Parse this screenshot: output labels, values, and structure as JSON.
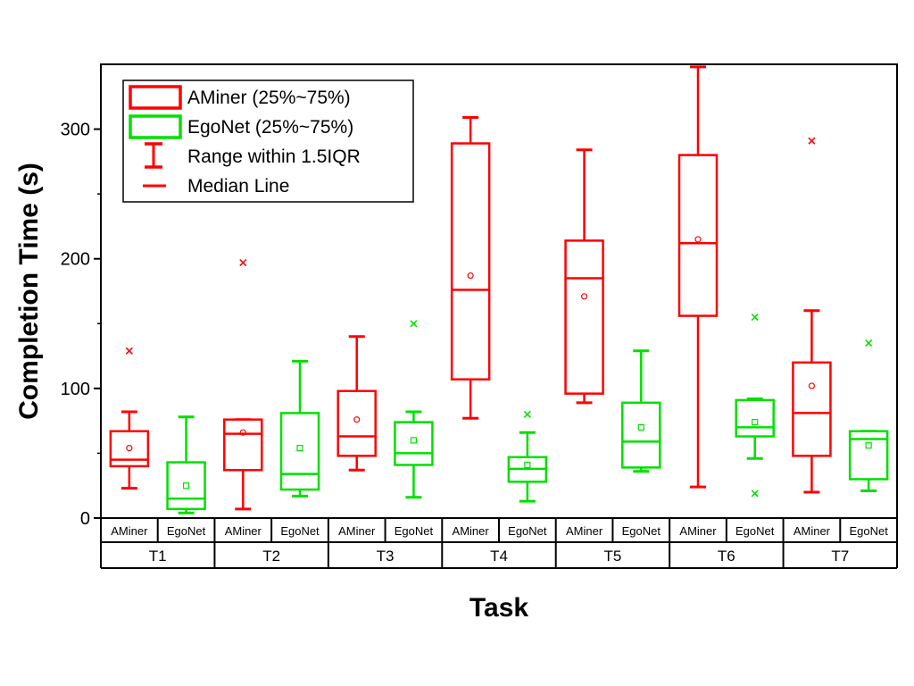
{
  "chart_data": {
    "type": "box",
    "xlabel": "Task",
    "ylabel": "Completion Time (s)",
    "ylim": [
      0,
      350
    ],
    "yticks": [
      0,
      100,
      200,
      300
    ],
    "groups": [
      "T1",
      "T2",
      "T3",
      "T4",
      "T5",
      "T6",
      "T7"
    ],
    "colors": {
      "AMiner": "#ff0000",
      "EgoNet": "#00e000"
    },
    "legend": {
      "position": "top-left",
      "entries": [
        {
          "label": "AMiner (25%~75%)",
          "kind": "box",
          "series": "AMiner"
        },
        {
          "label": "EgoNet (25%~75%)",
          "kind": "box",
          "series": "EgoNet"
        },
        {
          "label": "Range within 1.5IQR",
          "kind": "whisker",
          "series": "AMiner"
        },
        {
          "label": "Median Line",
          "kind": "median",
          "series": "AMiner"
        }
      ]
    },
    "series": [
      {
        "name": "AMiner",
        "boxes": [
          {
            "group": "T1",
            "whisker_low": 23,
            "q1": 40,
            "median": 45,
            "q3": 67,
            "whisker_high": 82,
            "mean": 54,
            "outliers": [
              129
            ]
          },
          {
            "group": "T2",
            "whisker_low": 7,
            "q1": 37,
            "median": 65,
            "q3": 76,
            "whisker_high": 76,
            "mean": 66,
            "outliers": [
              197
            ]
          },
          {
            "group": "T3",
            "whisker_low": 37,
            "q1": 48,
            "median": 63,
            "q3": 98,
            "whisker_high": 140,
            "mean": 76,
            "outliers": []
          },
          {
            "group": "T4",
            "whisker_low": 77,
            "q1": 107,
            "median": 176,
            "q3": 289,
            "whisker_high": 309,
            "mean": 187,
            "outliers": []
          },
          {
            "group": "T5",
            "whisker_low": 89,
            "q1": 96,
            "median": 185,
            "q3": 214,
            "whisker_high": 284,
            "mean": 171,
            "outliers": []
          },
          {
            "group": "T6",
            "whisker_low": 24,
            "q1": 156,
            "median": 212,
            "q3": 280,
            "whisker_high": 348,
            "mean": 215,
            "outliers": []
          },
          {
            "group": "T7",
            "whisker_low": 20,
            "q1": 48,
            "median": 81,
            "q3": 120,
            "whisker_high": 160,
            "mean": 102,
            "outliers": [
              291
            ]
          }
        ]
      },
      {
        "name": "EgoNet",
        "boxes": [
          {
            "group": "T1",
            "whisker_low": 4,
            "q1": 7,
            "median": 15,
            "q3": 43,
            "whisker_high": 78,
            "mean": 25,
            "outliers": []
          },
          {
            "group": "T2",
            "whisker_low": 17,
            "q1": 22,
            "median": 34,
            "q3": 81,
            "whisker_high": 121,
            "mean": 54,
            "outliers": []
          },
          {
            "group": "T3",
            "whisker_low": 16,
            "q1": 41,
            "median": 50,
            "q3": 74,
            "whisker_high": 82,
            "mean": 60,
            "outliers": [
              150
            ]
          },
          {
            "group": "T4",
            "whisker_low": 13,
            "q1": 28,
            "median": 38,
            "q3": 47,
            "whisker_high": 66,
            "mean": 41,
            "outliers": [
              80
            ]
          },
          {
            "group": "T5",
            "whisker_low": 36,
            "q1": 39,
            "median": 59,
            "q3": 89,
            "whisker_high": 129,
            "mean": 70,
            "outliers": []
          },
          {
            "group": "T6",
            "whisker_low": 46,
            "q1": 63,
            "median": 70,
            "q3": 91,
            "whisker_high": 92,
            "mean": 74,
            "outliers": [
              155,
              19
            ]
          },
          {
            "group": "T7",
            "whisker_low": 21,
            "q1": 30,
            "median": 61,
            "q3": 67,
            "whisker_high": 67,
            "mean": 56,
            "outliers": [
              135
            ]
          }
        ]
      }
    ]
  }
}
